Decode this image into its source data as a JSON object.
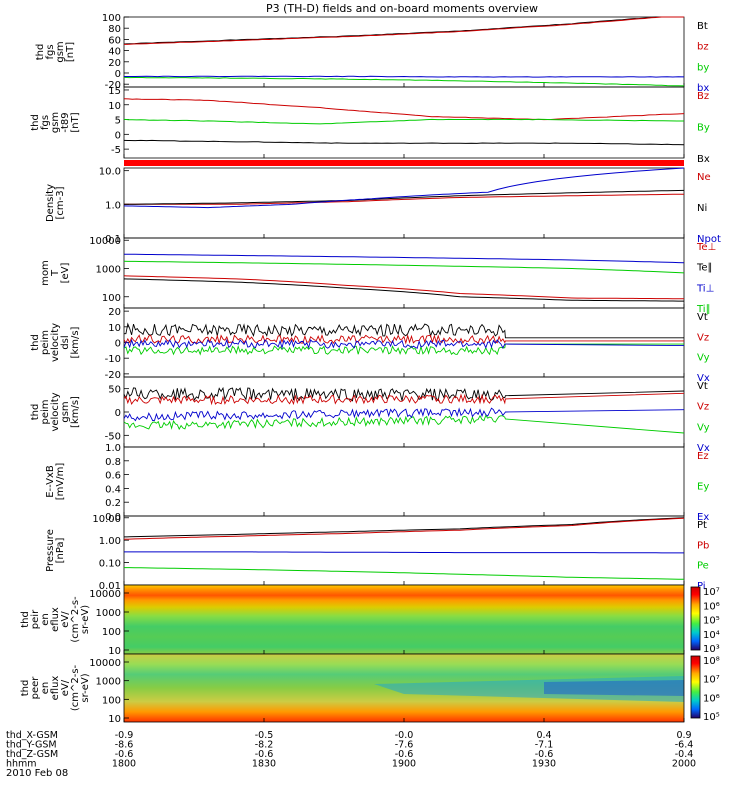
{
  "title": "P3 (TH-D) fields and on-board moments overview",
  "date_label": "2010 Feb 08",
  "orbit": {
    "row_labels": [
      "thd_X-GSM",
      "thd_Y-GSM",
      "thd_Z-GSM",
      "hhmm"
    ],
    "columns": [
      [
        "-0.9",
        "-8.6",
        "-0.6",
        "1800"
      ],
      [
        "-0.5",
        "-8.2",
        "-0.6",
        "1830"
      ],
      [
        "-0.0",
        "-7.6",
        "-0.6",
        "1900"
      ],
      [
        "0.4",
        "-7.1",
        "-0.6",
        "1930"
      ],
      [
        "0.9",
        "-6.4",
        "-0.4",
        "2000"
      ]
    ]
  },
  "colors": {
    "black": "#000000",
    "red": "#cc0000",
    "green": "#00cc00",
    "blue": "#0000cc"
  },
  "chart_data": [
    {
      "type": "line",
      "panel": "fgs",
      "ylabel": [
        "thd",
        "fgs",
        "gsm",
        "[nT]"
      ],
      "yticks": [
        "100",
        "80",
        "60",
        "40",
        "20",
        "0",
        "-20"
      ],
      "ylim": [
        -25,
        100
      ],
      "x_hhmm": [
        "1800",
        "1830",
        "1900",
        "1930",
        "2000"
      ],
      "series": [
        {
          "name": "Bt",
          "color": "black",
          "x": [
            0,
            0.2,
            0.4,
            0.6,
            0.8,
            1.0
          ],
          "y": [
            52,
            59,
            66,
            75,
            88,
            104
          ]
        },
        {
          "name": "bz",
          "color": "red",
          "x": [
            0,
            0.2,
            0.4,
            0.6,
            0.8,
            1.0
          ],
          "y": [
            51,
            58,
            65,
            74,
            87,
            103
          ]
        },
        {
          "name": "by",
          "color": "green",
          "x": [
            0,
            0.2,
            0.4,
            0.6,
            0.8,
            1.0
          ],
          "y": [
            -8,
            -9,
            -11,
            -14,
            -18,
            -23
          ]
        },
        {
          "name": "bx",
          "color": "blue",
          "x": [
            0,
            0.2,
            0.4,
            0.6,
            0.8,
            1.0
          ],
          "y": [
            -6,
            -6,
            -6,
            -7,
            -7,
            -7
          ]
        }
      ]
    },
    {
      "type": "line",
      "panel": "fgs-t89",
      "ylabel": [
        "thd",
        "fgs",
        "gsm",
        "-t89",
        "[nT]"
      ],
      "yticks": [
        "15",
        "10",
        "5",
        "0",
        "-5"
      ],
      "ylim": [
        -8,
        16
      ],
      "series": [
        {
          "name": "Bz",
          "color": "red",
          "x": [
            0,
            0.15,
            0.35,
            0.55,
            0.75,
            1.0
          ],
          "y": [
            12,
            11.5,
            9,
            6,
            5,
            7
          ]
        },
        {
          "name": "By",
          "color": "green",
          "x": [
            0,
            0.15,
            0.35,
            0.55,
            0.75,
            1.0
          ],
          "y": [
            5,
            4.5,
            3.5,
            5,
            5,
            4.5
          ]
        },
        {
          "name": "Bx",
          "color": "black",
          "x": [
            0,
            0.2,
            0.4,
            0.6,
            0.8,
            1.0
          ],
          "y": [
            -2,
            -2.5,
            -3,
            -3,
            -3,
            -3.5
          ]
        }
      ]
    },
    {
      "type": "line",
      "panel": "density",
      "ylabel": [
        "Density",
        "[cm-3]"
      ],
      "yticks": [
        "10.0",
        "1.0",
        "0.1"
      ],
      "yscale": "log",
      "ylim": [
        0.1,
        12
      ],
      "series": [
        {
          "name": "Ne",
          "color": "red",
          "x": [
            0,
            0.2,
            0.4,
            0.6,
            0.8,
            1.0
          ],
          "y": [
            1.0,
            1.0,
            1.2,
            1.6,
            1.8,
            2.0
          ]
        },
        {
          "name": "Ni",
          "color": "black",
          "x": [
            0,
            0.2,
            0.4,
            0.6,
            0.8,
            1.0
          ],
          "y": [
            1.0,
            1.1,
            1.3,
            1.8,
            2.2,
            2.6
          ]
        },
        {
          "name": "Npot",
          "color": "blue",
          "x": [
            0,
            0.15,
            0.3,
            0.45,
            0.65,
            1.0
          ],
          "y": [
            0.9,
            0.8,
            1.0,
            1.5,
            2.3,
            12
          ]
        }
      ]
    },
    {
      "type": "line",
      "panel": "temperature",
      "ylabel": [
        "mom",
        "T",
        "[eV]"
      ],
      "yticks": [
        "10000",
        "1000",
        "100"
      ],
      "yscale": "log",
      "ylim": [
        40,
        12000
      ],
      "series": [
        {
          "name": "Te⊥",
          "color": "red",
          "x": [
            0,
            0.2,
            0.4,
            0.6,
            0.8,
            1.0
          ],
          "y": [
            550,
            430,
            250,
            130,
            90,
            85
          ]
        },
        {
          "name": "Te∥",
          "color": "black",
          "x": [
            0,
            0.2,
            0.4,
            0.6,
            0.8,
            1.0
          ],
          "y": [
            430,
            330,
            200,
            100,
            75,
            70
          ]
        },
        {
          "name": "Ti⊥",
          "color": "blue",
          "x": [
            0,
            0.2,
            0.4,
            0.6,
            0.8,
            1.0
          ],
          "y": [
            3200,
            2900,
            2600,
            2300,
            2000,
            1600
          ]
        },
        {
          "name": "Ti∥",
          "color": "green",
          "x": [
            0,
            0.2,
            0.4,
            0.6,
            0.8,
            1.0
          ],
          "y": [
            1800,
            1600,
            1400,
            1200,
            1000,
            700
          ]
        }
      ]
    },
    {
      "type": "line",
      "panel": "peim-velocity-dsl",
      "ylabel": [
        "thd",
        "peim",
        "velocity",
        "dsl",
        "[km/s]"
      ],
      "yticks": [
        "20",
        "10",
        "0",
        "-10",
        "-20"
      ],
      "ylim": [
        -22,
        22
      ],
      "series": [
        {
          "name": "Vt",
          "color": "black",
          "x": [
            0,
            0.68,
            0.681,
            1.0
          ],
          "y": [
            8,
            8,
            3,
            3
          ]
        },
        {
          "name": "Vz",
          "color": "red",
          "x": [
            0,
            0.68,
            0.681,
            1.0
          ],
          "y": [
            2,
            2,
            1,
            1
          ]
        },
        {
          "name": "Vy",
          "color": "green",
          "x": [
            0,
            0.68,
            0.681,
            1.0
          ],
          "y": [
            -5,
            -5,
            -1,
            -1
          ]
        },
        {
          "name": "Vx",
          "color": "blue",
          "x": [
            0,
            0.68,
            0.681,
            1.0
          ],
          "y": [
            -1,
            -1,
            -1,
            -2
          ]
        }
      ]
    },
    {
      "type": "line",
      "panel": "peim-velocity-gsm",
      "ylabel": [
        "thd",
        "peim",
        "velocity",
        "gsm",
        "[km/s]"
      ],
      "yticks": [
        "50",
        "0",
        "-50"
      ],
      "ylim": [
        -75,
        75
      ],
      "series": [
        {
          "name": "Vt",
          "color": "black",
          "x": [
            0,
            0.68,
            0.681,
            1.0
          ],
          "y": [
            40,
            35,
            35,
            45
          ]
        },
        {
          "name": "Vz",
          "color": "red",
          "x": [
            0,
            0.68,
            0.681,
            1.0
          ],
          "y": [
            25,
            28,
            28,
            40
          ]
        },
        {
          "name": "Vy",
          "color": "green",
          "x": [
            0,
            0.68,
            0.681,
            1.0
          ],
          "y": [
            -30,
            -15,
            -15,
            -45
          ]
        },
        {
          "name": "Vx",
          "color": "blue",
          "x": [
            0,
            0.68,
            0.681,
            1.0
          ],
          "y": [
            -10,
            0,
            0,
            5
          ]
        }
      ]
    },
    {
      "type": "line",
      "panel": "e-vxb",
      "ylabel": [
        "E--VxB",
        "[mV/m]"
      ],
      "yticks": [
        "1.0",
        "0.8",
        "0.6",
        "0.4",
        "0.2",
        "0.0"
      ],
      "ylim": [
        0,
        1
      ],
      "series": [
        {
          "name": "Ez",
          "color": "red",
          "x": [],
          "y": []
        },
        {
          "name": "Ey",
          "color": "green",
          "x": [],
          "y": []
        },
        {
          "name": "Ex",
          "color": "blue",
          "x": [],
          "y": []
        }
      ]
    },
    {
      "type": "line",
      "panel": "pressure",
      "ylabel": [
        "Pressure",
        "[nPa]"
      ],
      "yticks": [
        "10.00",
        "1.00",
        "0.10",
        "0.01"
      ],
      "yscale": "log",
      "ylim": [
        0.01,
        12
      ],
      "series": [
        {
          "name": "Pt",
          "color": "black",
          "x": [
            0,
            0.2,
            0.4,
            0.6,
            0.8,
            1.0
          ],
          "y": [
            1.4,
            1.8,
            2.4,
            3.2,
            5,
            10
          ]
        },
        {
          "name": "Pb",
          "color": "red",
          "x": [
            0,
            0.2,
            0.4,
            0.6,
            0.8,
            1.0
          ],
          "y": [
            1.1,
            1.5,
            2.0,
            2.8,
            4.5,
            9.5
          ]
        },
        {
          "name": "Pe",
          "color": "green",
          "x": [
            0,
            0.2,
            0.4,
            0.6,
            0.8,
            1.0
          ],
          "y": [
            0.06,
            0.05,
            0.04,
            0.03,
            0.022,
            0.018
          ]
        },
        {
          "name": "Pi",
          "color": "blue",
          "x": [
            0,
            0.2,
            0.4,
            0.6,
            0.8,
            1.0
          ],
          "y": [
            0.3,
            0.3,
            0.29,
            0.28,
            0.28,
            0.27
          ]
        }
      ]
    },
    {
      "type": "heatmap",
      "panel": "peir-en-eflux",
      "ylabel": [
        "thd",
        "peir",
        "en",
        "eflux",
        "eV/",
        "(cm^2-s-",
        "sr-eV)"
      ],
      "yticks": [
        "10000",
        "1000",
        "100",
        "10"
      ],
      "yscale": "log",
      "colorbar_labels": [
        "10⁷",
        "10⁶",
        "10⁵",
        "10⁴",
        "10³"
      ]
    },
    {
      "type": "heatmap",
      "panel": "peer-en-eflux",
      "ylabel": [
        "thd",
        "peer",
        "en",
        "eflux",
        "eV/",
        "(cm^2-s-",
        "sr-eV)"
      ],
      "yticks": [
        "10000",
        "1000",
        "100",
        "10"
      ],
      "yscale": "log",
      "colorbar_labels": [
        "10⁸",
        "10⁷",
        "10⁶",
        "10⁵"
      ]
    }
  ]
}
